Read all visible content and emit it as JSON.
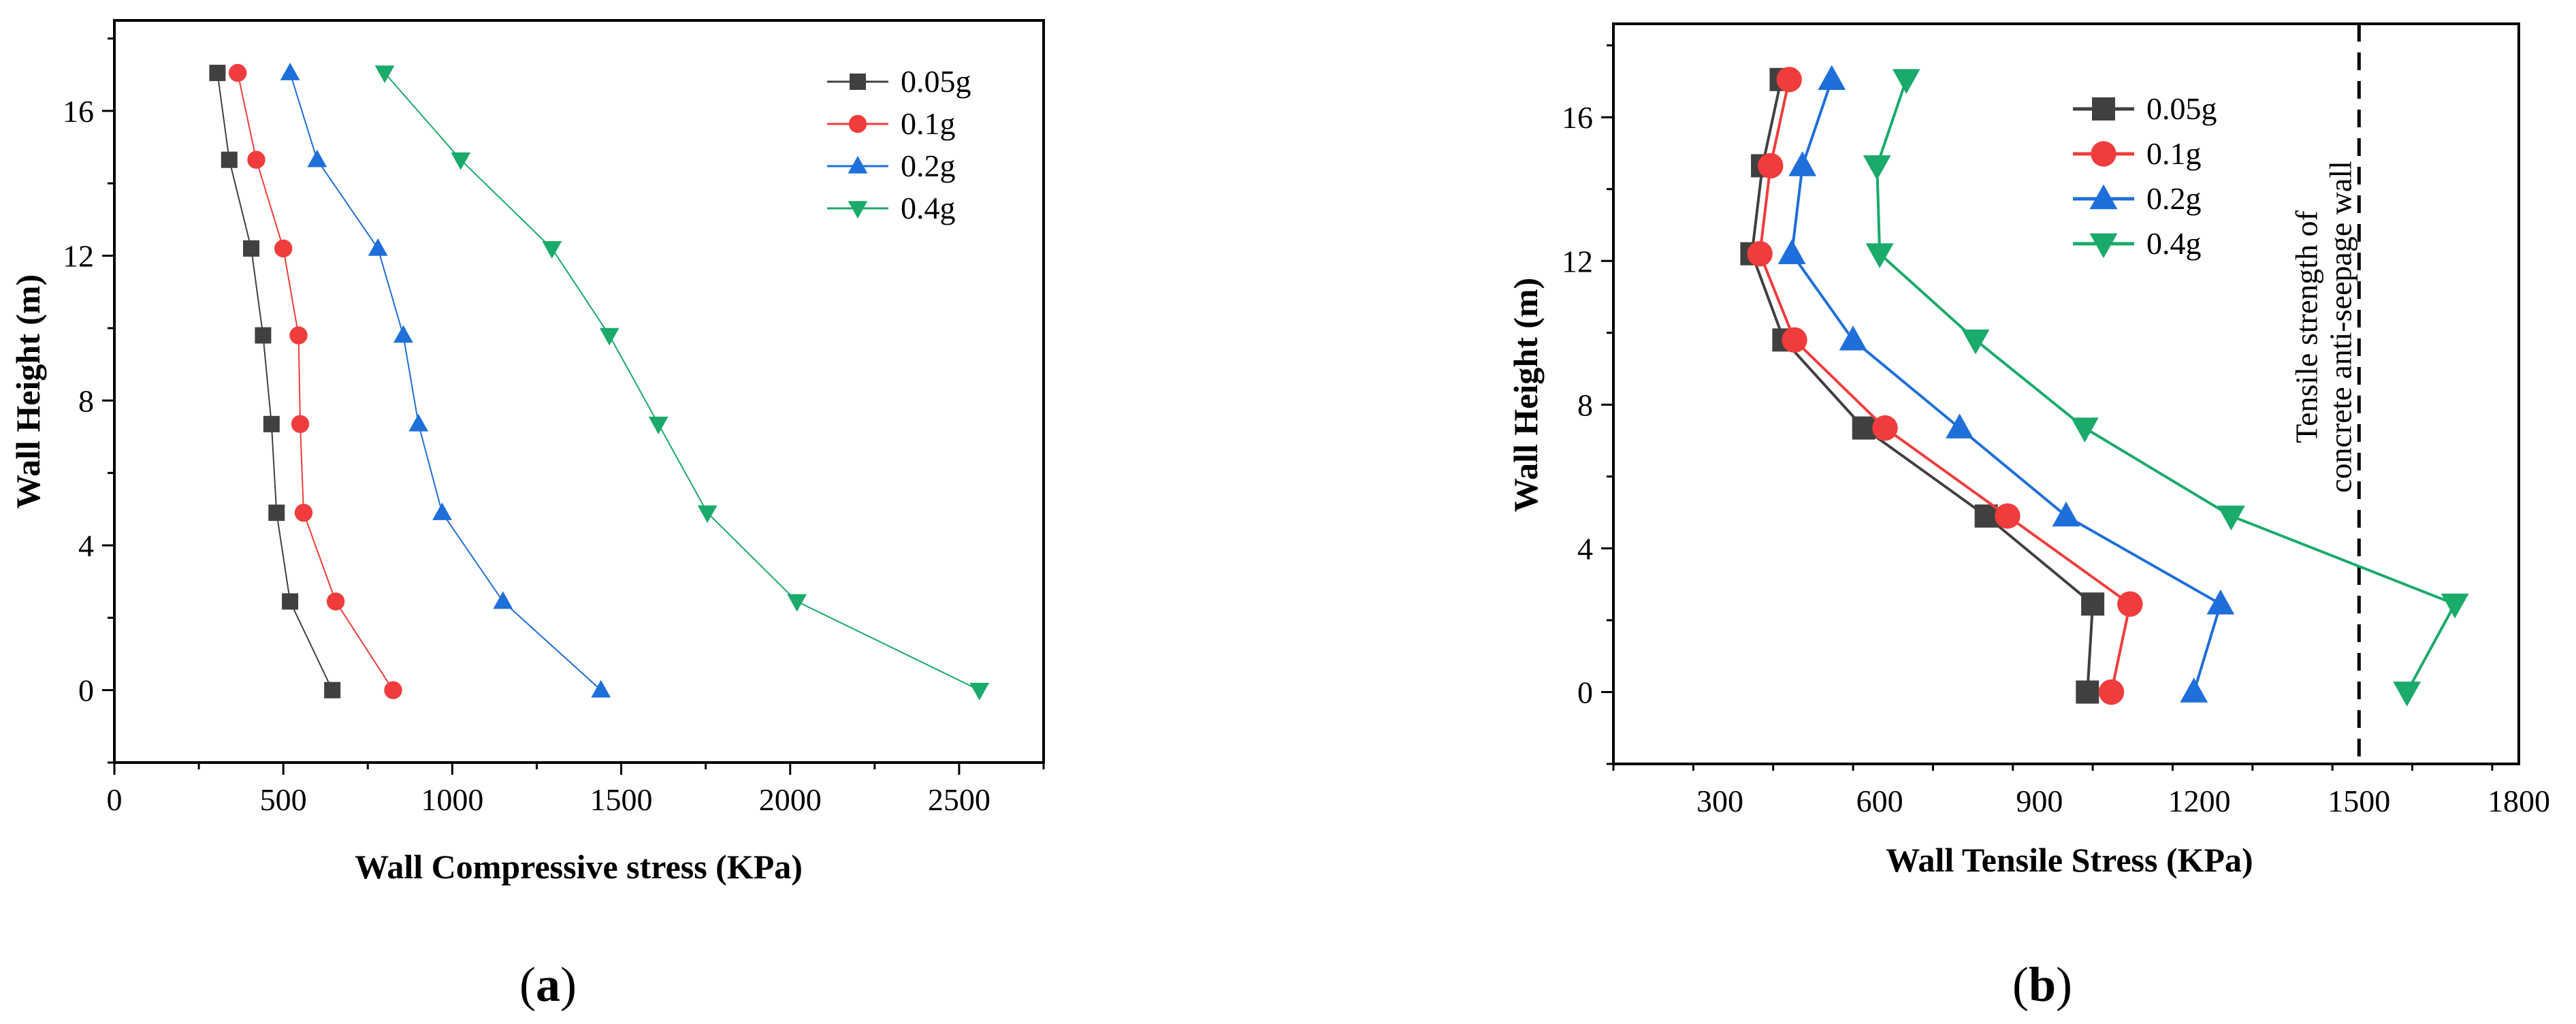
{
  "chart_data": [
    {
      "id": "a",
      "panel_label": "a",
      "type": "line",
      "xlabel": "Wall Compressive stress (KPa)",
      "ylabel": "Wall Height (m)",
      "xlim": [
        0,
        2750
      ],
      "ylim": [
        -2,
        18.5
      ],
      "xticks": [
        0,
        500,
        1000,
        1500,
        2000,
        2500
      ],
      "yticks": [
        0,
        4,
        8,
        12,
        16
      ],
      "legend_position": "top-right",
      "series": [
        {
          "name": "0.05g",
          "color": "#404040",
          "marker": "square",
          "x": [
            645,
            520,
            480,
            465,
            440,
            405,
            340,
            305
          ],
          "y": [
            0,
            2.45,
            4.9,
            7.35,
            9.8,
            12.2,
            14.65,
            17.05
          ]
        },
        {
          "name": "0.1g",
          "color": "#f03c3c",
          "marker": "circle",
          "x": [
            825,
            655,
            560,
            550,
            545,
            500,
            420,
            365
          ],
          "y": [
            0,
            2.45,
            4.9,
            7.35,
            9.8,
            12.2,
            14.65,
            17.05
          ]
        },
        {
          "name": "0.2g",
          "color": "#1e6fd9",
          "marker": "triangle-up",
          "x": [
            1440,
            1150,
            970,
            900,
            855,
            780,
            600,
            520
          ],
          "y": [
            0,
            2.45,
            4.9,
            7.35,
            9.8,
            12.2,
            14.65,
            17.05
          ]
        },
        {
          "name": "0.4g",
          "color": "#1aaa6a",
          "marker": "triangle-down",
          "x": [
            2560,
            2020,
            1755,
            1610,
            1465,
            1295,
            1025,
            800
          ],
          "y": [
            0,
            2.45,
            4.9,
            7.35,
            9.8,
            12.2,
            14.65,
            17.05
          ]
        }
      ]
    },
    {
      "id": "b",
      "panel_label": "b",
      "type": "line",
      "xlabel": "Wall Tensile Stress (KPa)",
      "ylabel": "Wall Height (m)",
      "xlim": [
        100,
        1800
      ],
      "ylim": [
        -2,
        18.6
      ],
      "xticks": [
        300,
        600,
        900,
        1200,
        1500,
        1800
      ],
      "yticks": [
        0,
        4,
        8,
        12,
        16
      ],
      "legend_position": "top-left",
      "reference_line": {
        "x": 1500,
        "label_line1": "Tensile strength of",
        "label_line2": "concrete anti-seepage wall"
      },
      "series": [
        {
          "name": "0.05g",
          "color": "#404040",
          "marker": "square",
          "x": [
            990,
            1000,
            800,
            570,
            420,
            360,
            380,
            415
          ],
          "y": [
            0,
            2.45,
            4.9,
            7.35,
            9.8,
            12.2,
            14.65,
            17.05
          ]
        },
        {
          "name": "0.1g",
          "color": "#f03c3c",
          "marker": "circle",
          "x": [
            1035,
            1070,
            840,
            610,
            440,
            375,
            395,
            430
          ],
          "y": [
            0,
            2.45,
            4.9,
            7.35,
            9.8,
            12.2,
            14.65,
            17.05
          ]
        },
        {
          "name": "0.2g",
          "color": "#1e6fd9",
          "marker": "triangle-up",
          "x": [
            1190,
            1240,
            950,
            750,
            550,
            435,
            455,
            510
          ],
          "y": [
            0,
            2.45,
            4.9,
            7.35,
            9.8,
            12.2,
            14.65,
            17.05
          ]
        },
        {
          "name": "0.4g",
          "color": "#1aaa6a",
          "marker": "triangle-down",
          "x": [
            1590,
            1680,
            1260,
            985,
            780,
            600,
            595,
            650
          ],
          "y": [
            0,
            2.45,
            4.9,
            7.35,
            9.8,
            12.2,
            14.65,
            17.05
          ]
        }
      ]
    }
  ]
}
